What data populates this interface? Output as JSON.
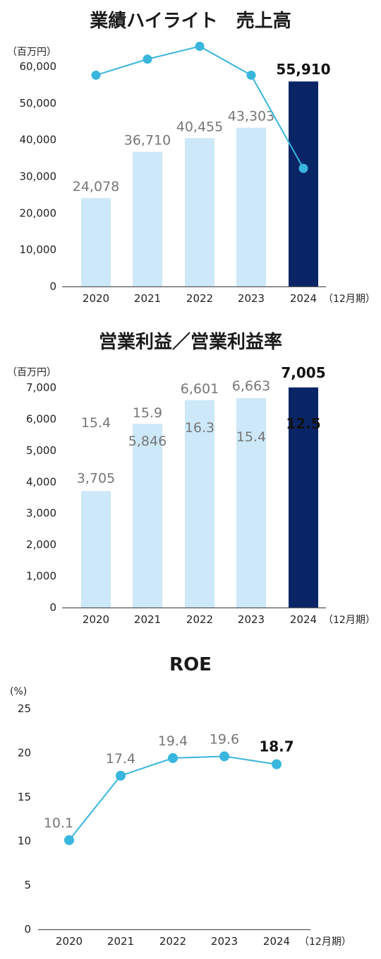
{
  "colors": {
    "bar_light": "#cde8f8",
    "bar_highlight": "#0a2566",
    "line": "#38b6dd",
    "axis": "#555555",
    "label_gray": "#777777",
    "label_bold": "#111111"
  },
  "chart_data": [
    {
      "type": "bar",
      "title": "業績ハイライト　売上高",
      "unit": "（百万円）",
      "period_label": "（12月期）",
      "categories": [
        "2020",
        "2021",
        "2022",
        "2023",
        "2024"
      ],
      "values": [
        24078,
        36710,
        40455,
        43303,
        55910
      ],
      "value_labels": [
        "24,078",
        "36,710",
        "40,455",
        "43,303",
        "55,910"
      ],
      "highlight_index": 4,
      "ylim": [
        0,
        60000
      ],
      "yticks": [
        0,
        10000,
        20000,
        30000,
        40000,
        50000,
        60000
      ],
      "ytick_labels": [
        "0",
        "10,000",
        "20,000",
        "30,000",
        "40,000",
        "50,000",
        "60,000"
      ]
    },
    {
      "type": "bar+line",
      "title": "営業利益／営業利益率",
      "unit": "（百万円）",
      "period_label": "（12月期）",
      "categories": [
        "2020",
        "2021",
        "2022",
        "2023",
        "2024"
      ],
      "values": [
        3705,
        5846,
        6601,
        6663,
        7005
      ],
      "value_labels": [
        "3,705",
        "5,846",
        "6,601",
        "6,663",
        "7,005"
      ],
      "line_values": [
        15.4,
        15.9,
        16.3,
        15.4,
        12.5
      ],
      "line_labels": [
        "15.4",
        "15.9",
        "16.3",
        "15.4",
        "12.5"
      ],
      "highlight_index": 4,
      "ylim": [
        0,
        7000
      ],
      "yticks": [
        0,
        1000,
        2000,
        3000,
        4000,
        5000,
        6000,
        7000
      ],
      "ytick_labels": [
        "0",
        "1,000",
        "2,000",
        "3,000",
        "4,000",
        "5,000",
        "6,000",
        "7,000"
      ]
    },
    {
      "type": "line",
      "title": "ROE",
      "unit": "(%)",
      "period_label": "（12月期）",
      "categories": [
        "2020",
        "2021",
        "2022",
        "2023",
        "2024"
      ],
      "values": [
        10.1,
        17.4,
        19.4,
        19.6,
        18.7
      ],
      "value_labels": [
        "10.1",
        "17.4",
        "19.4",
        "19.6",
        "18.7"
      ],
      "highlight_index": 4,
      "ylim": [
        0,
        25
      ],
      "yticks": [
        0,
        5,
        10,
        15,
        20,
        25
      ],
      "ytick_labels": [
        "0",
        "5",
        "10",
        "15",
        "20",
        "25"
      ]
    }
  ]
}
